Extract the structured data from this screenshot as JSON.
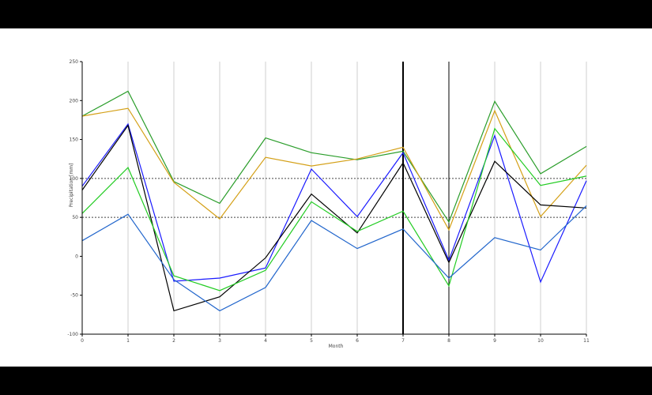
{
  "chart_data": {
    "type": "line",
    "xlabel": "Month",
    "ylabel": "Precipitation [mm]",
    "x": [
      0,
      1,
      2,
      3,
      4,
      5,
      6,
      7,
      8,
      9,
      10,
      11
    ],
    "x_tick_labels": [
      "0",
      "1",
      "2",
      "3",
      "4",
      "5",
      "6",
      "7",
      "8",
      "9",
      "10",
      "11"
    ],
    "ylim": [
      -100,
      250
    ],
    "y_ticks": [
      -100,
      -50,
      0,
      50,
      100,
      150,
      200,
      250
    ],
    "y_tick_labels": [
      "-100",
      "-50",
      "0",
      "50",
      "100",
      "150",
      "200",
      "250"
    ],
    "grid": "vertical",
    "reference_lines": [
      50,
      100
    ],
    "vertical_markers": [
      7,
      8
    ],
    "series": [
      {
        "color": "#2a9d2a",
        "values": [
          180,
          212,
          96,
          68,
          152,
          133,
          124,
          135,
          44,
          199,
          106,
          141
        ]
      },
      {
        "color": "#d4a017",
        "values": [
          180,
          190,
          95,
          48,
          127,
          116,
          125,
          140,
          34,
          187,
          51,
          117
        ]
      },
      {
        "color": "#1a1aff",
        "values": [
          90,
          170,
          -32,
          -28,
          -15,
          112,
          51,
          133,
          -5,
          155,
          -33,
          97
        ]
      },
      {
        "color": "#000000",
        "values": [
          85,
          168,
          -70,
          -52,
          -2,
          80,
          30,
          120,
          -8,
          122,
          66,
          62
        ]
      },
      {
        "color": "#22cc22",
        "values": [
          55,
          114,
          -25,
          -44,
          -18,
          70,
          32,
          58,
          -38,
          164,
          91,
          103
        ]
      },
      {
        "color": "#2266cc",
        "values": [
          20,
          54,
          -30,
          -70,
          -40,
          46,
          10,
          35,
          -28,
          24,
          8,
          65
        ]
      }
    ]
  }
}
